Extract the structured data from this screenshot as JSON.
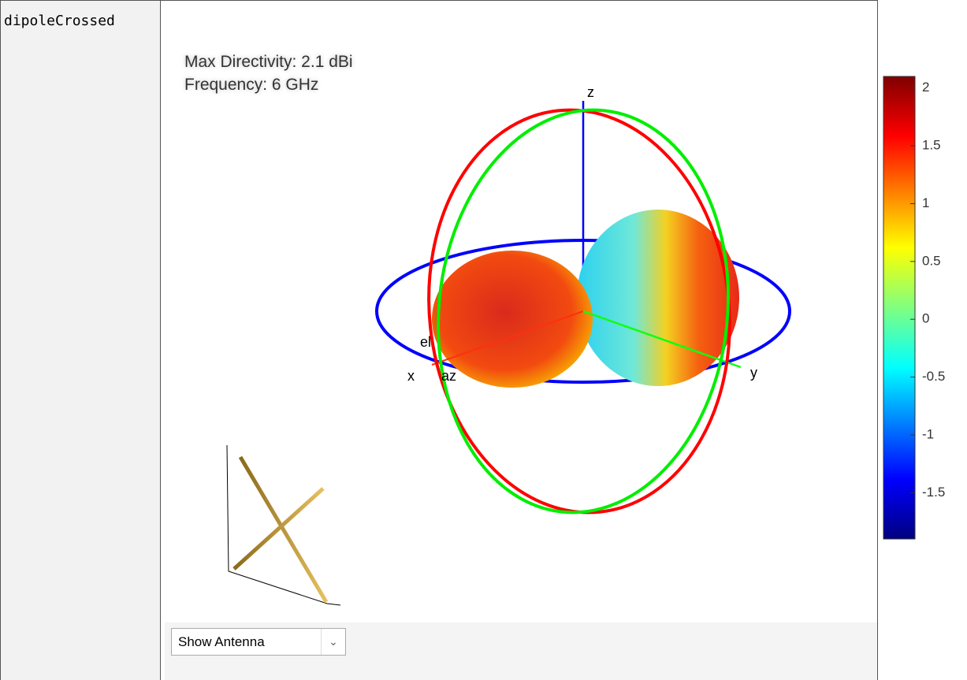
{
  "cell": {
    "label": "dipoleCrossed"
  },
  "plot": {
    "annotation": [
      "Max Directivity: 2.1 dBi",
      "Frequency: 6 GHz"
    ],
    "axis_labels": {
      "x": "x",
      "y": "y",
      "z": "z",
      "el": "el",
      "az": "az"
    },
    "colorbar": {
      "limits": [
        -1.9,
        2.1
      ],
      "ticks": [
        2,
        1.5,
        1,
        0.5,
        0,
        -0.5,
        -1,
        -1.5
      ]
    }
  },
  "dropdown": {
    "selected": "Show Antenna"
  }
}
